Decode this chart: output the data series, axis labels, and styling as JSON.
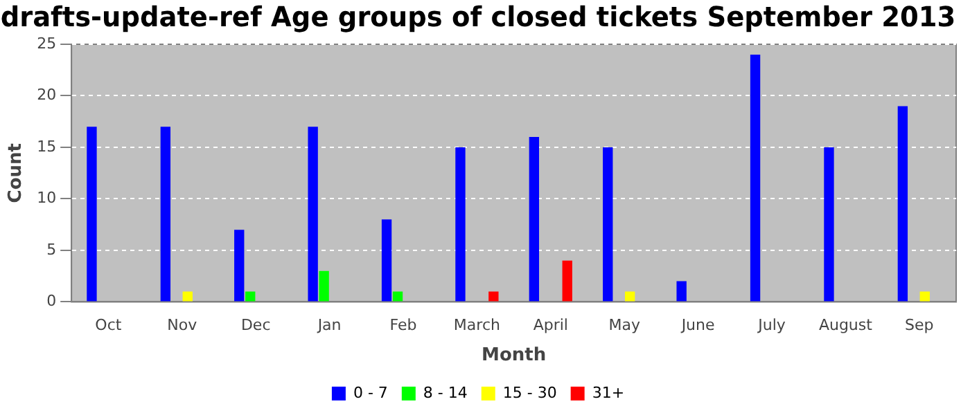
{
  "chart_data": {
    "type": "bar",
    "title": "drafts-update-ref Age groups of closed tickets September 2013",
    "xlabel": "Month",
    "ylabel": "Count",
    "categories": [
      "Oct",
      "Nov",
      "Dec",
      "Jan",
      "Feb",
      "March",
      "April",
      "May",
      "June",
      "July",
      "August",
      "Sep"
    ],
    "series": [
      {
        "name": "0 - 7",
        "color": "#0000ff",
        "values": [
          17,
          17,
          7,
          17,
          8,
          15,
          16,
          15,
          2,
          24,
          15,
          19
        ]
      },
      {
        "name": "8 - 14",
        "color": "#00ff00",
        "values": [
          0,
          0,
          1,
          3,
          1,
          0,
          0,
          0,
          0,
          0,
          0,
          0
        ]
      },
      {
        "name": "15 - 30",
        "color": "#ffff00",
        "values": [
          0,
          1,
          0,
          0,
          0,
          0,
          0,
          1,
          0,
          0,
          0,
          1
        ]
      },
      {
        "name": "31+",
        "color": "#ff0000",
        "values": [
          0,
          0,
          0,
          0,
          0,
          1,
          4,
          0,
          0,
          0,
          0,
          0
        ]
      }
    ],
    "ylim": [
      0,
      25
    ],
    "yticks": [
      0,
      5,
      10,
      15,
      20,
      25
    ],
    "grid": "y",
    "legend": "bottom"
  }
}
